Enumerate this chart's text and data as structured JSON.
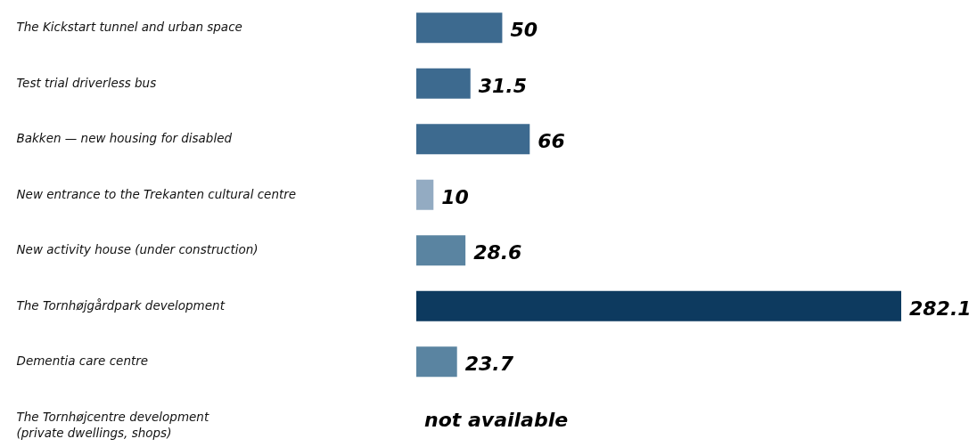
{
  "chart_data": {
    "type": "bar",
    "orientation": "horizontal",
    "categories": [
      "The Kickstart tunnel and urban space",
      "Test trial driverless bus",
      "Bakken — new housing for disabled",
      "New entrance to the Trekanten cultural centre",
      "New activity house (under construction)",
      "The Tornhøjgårdpark development",
      "Dementia care centre",
      "The Tornhøjcentre development\n (private dwellings, shops)"
    ],
    "values": [
      50,
      31.5,
      66,
      10,
      28.6,
      282.1,
      23.7,
      null
    ],
    "colors": [
      "#3d6a8f",
      "#3d6a8f",
      "#3d6a8f",
      "#93abc2",
      "#5a84a1",
      "#0d3a5f",
      "#5a84a1",
      null
    ],
    "value_labels": [
      "50",
      "31.5",
      "66",
      "10",
      "28.6",
      "282.1",
      "23.7",
      "not available"
    ]
  }
}
